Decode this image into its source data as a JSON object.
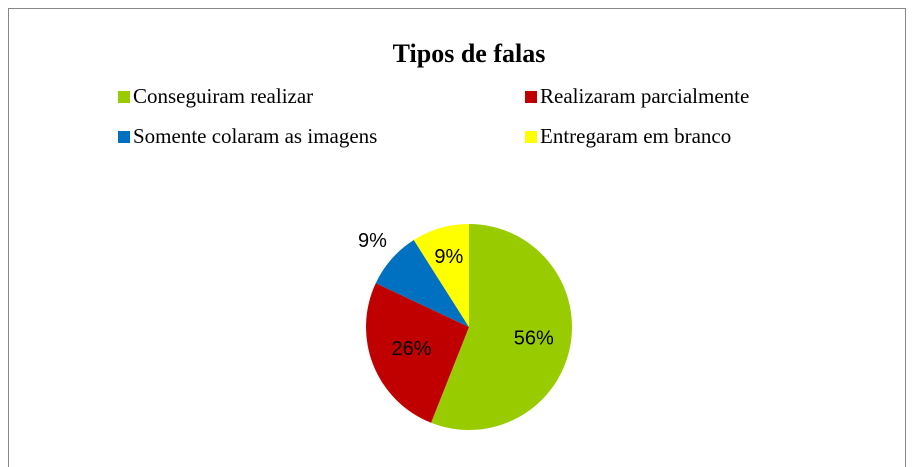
{
  "chart_data": {
    "type": "pie",
    "title": "Tipos de falas",
    "categories": [
      "Conseguiram realizar",
      "Realizaram parcialmente",
      "Somente colaram as imagens",
      "Entregaram em branco"
    ],
    "values": [
      56,
      26,
      9,
      9
    ],
    "value_labels": [
      "56%",
      "26%",
      "9%",
      "9%"
    ],
    "colors": [
      "#99cc00",
      "#c00000",
      "#0070c0",
      "#ffff00"
    ],
    "legend": "top"
  }
}
